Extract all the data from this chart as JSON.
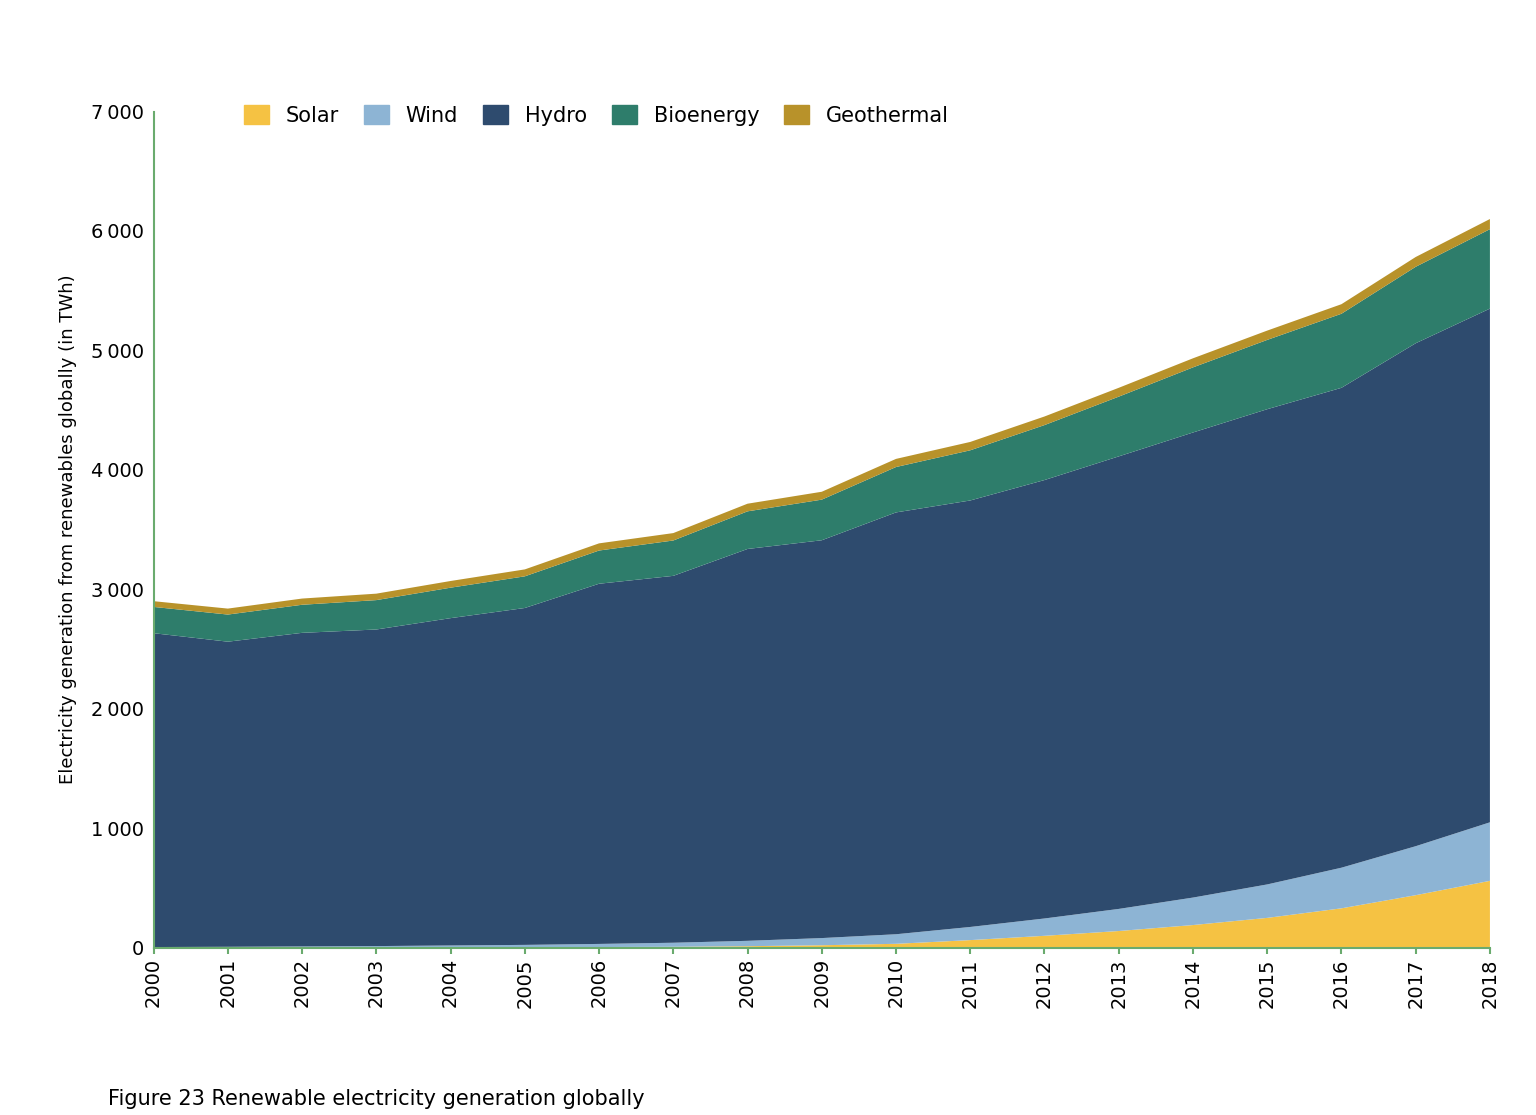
{
  "years": [
    2000,
    2001,
    2002,
    2003,
    2004,
    2005,
    2006,
    2007,
    2008,
    2009,
    2010,
    2011,
    2012,
    2013,
    2014,
    2015,
    2016,
    2017,
    2018
  ],
  "solar": [
    1,
    1,
    2,
    2,
    3,
    4,
    6,
    8,
    13,
    21,
    33,
    64,
    100,
    140,
    190,
    250,
    330,
    440,
    560
  ],
  "wind": [
    5,
    7,
    9,
    12,
    16,
    20,
    26,
    34,
    45,
    60,
    80,
    110,
    145,
    185,
    230,
    280,
    340,
    410,
    490
  ],
  "hydro": [
    2627,
    2554,
    2625,
    2650,
    2740,
    2820,
    3015,
    3071,
    3280,
    3330,
    3531,
    3570,
    3670,
    3788,
    3893,
    3978,
    4017,
    4210,
    4300
  ],
  "bioenergy": [
    220,
    227,
    235,
    246,
    255,
    265,
    278,
    296,
    315,
    340,
    380,
    420,
    460,
    500,
    545,
    580,
    620,
    640,
    665
  ],
  "geothermal": [
    48,
    50,
    52,
    54,
    56,
    58,
    60,
    62,
    64,
    66,
    68,
    70,
    72,
    74,
    76,
    78,
    80,
    82,
    85
  ],
  "colors": {
    "solar": "#F5C243",
    "wind": "#8DB4D4",
    "hydro": "#2E4B6E",
    "bioenergy": "#2E7D6B",
    "geothermal": "#B8922A"
  },
  "ylabel": "Electricity generation from renewables globally (in TWh)",
  "ylim": [
    0,
    7000
  ],
  "yticks": [
    0,
    1000,
    2000,
    3000,
    4000,
    5000,
    6000,
    7000
  ],
  "caption": "Figure 23 Renewable electricity generation globally",
  "axis_line_color": "#6AAB6E",
  "legend_labels": [
    "Solar",
    "Wind",
    "Hydro",
    "Bioenergy",
    "Geothermal"
  ],
  "bg_color": "#FFFFFF"
}
